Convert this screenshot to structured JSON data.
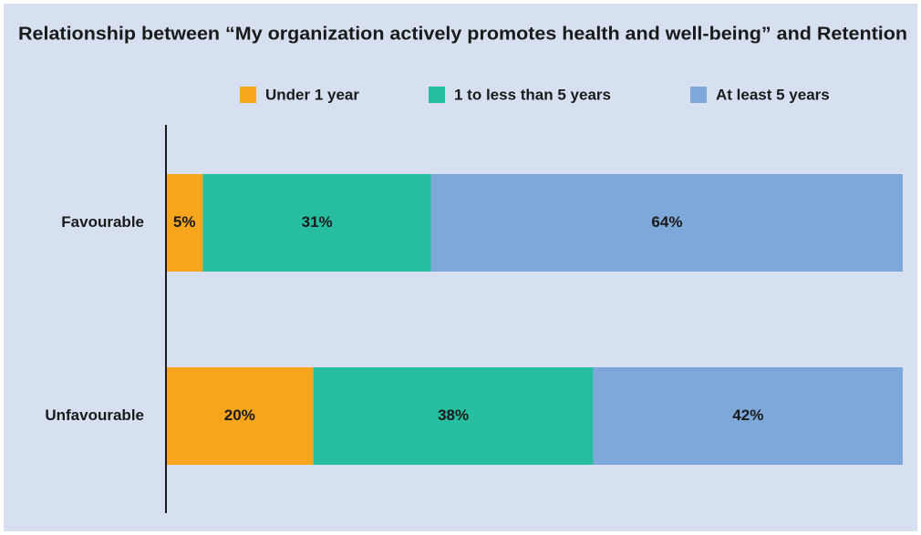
{
  "chart_data": {
    "type": "stacked-bar-horizontal",
    "title": "Relationship between “My organization actively promotes health and well-being” and Retention",
    "categories": [
      "Favourable",
      "Unfavourable"
    ],
    "series": [
      {
        "name": "Under 1 year",
        "color": "#f7a51c",
        "values": [
          5,
          20
        ],
        "value_labels": [
          "5%",
          "20%"
        ]
      },
      {
        "name": "1 to less than 5 years",
        "color": "#26bda0",
        "values": [
          31,
          38
        ],
        "value_labels": [
          "31%",
          "38%"
        ]
      },
      {
        "name": "At least 5 years",
        "color": "#7ea7da",
        "values": [
          64,
          42
        ],
        "value_labels": [
          "64%",
          "42%"
        ]
      }
    ],
    "xlim": [
      0,
      100
    ]
  }
}
